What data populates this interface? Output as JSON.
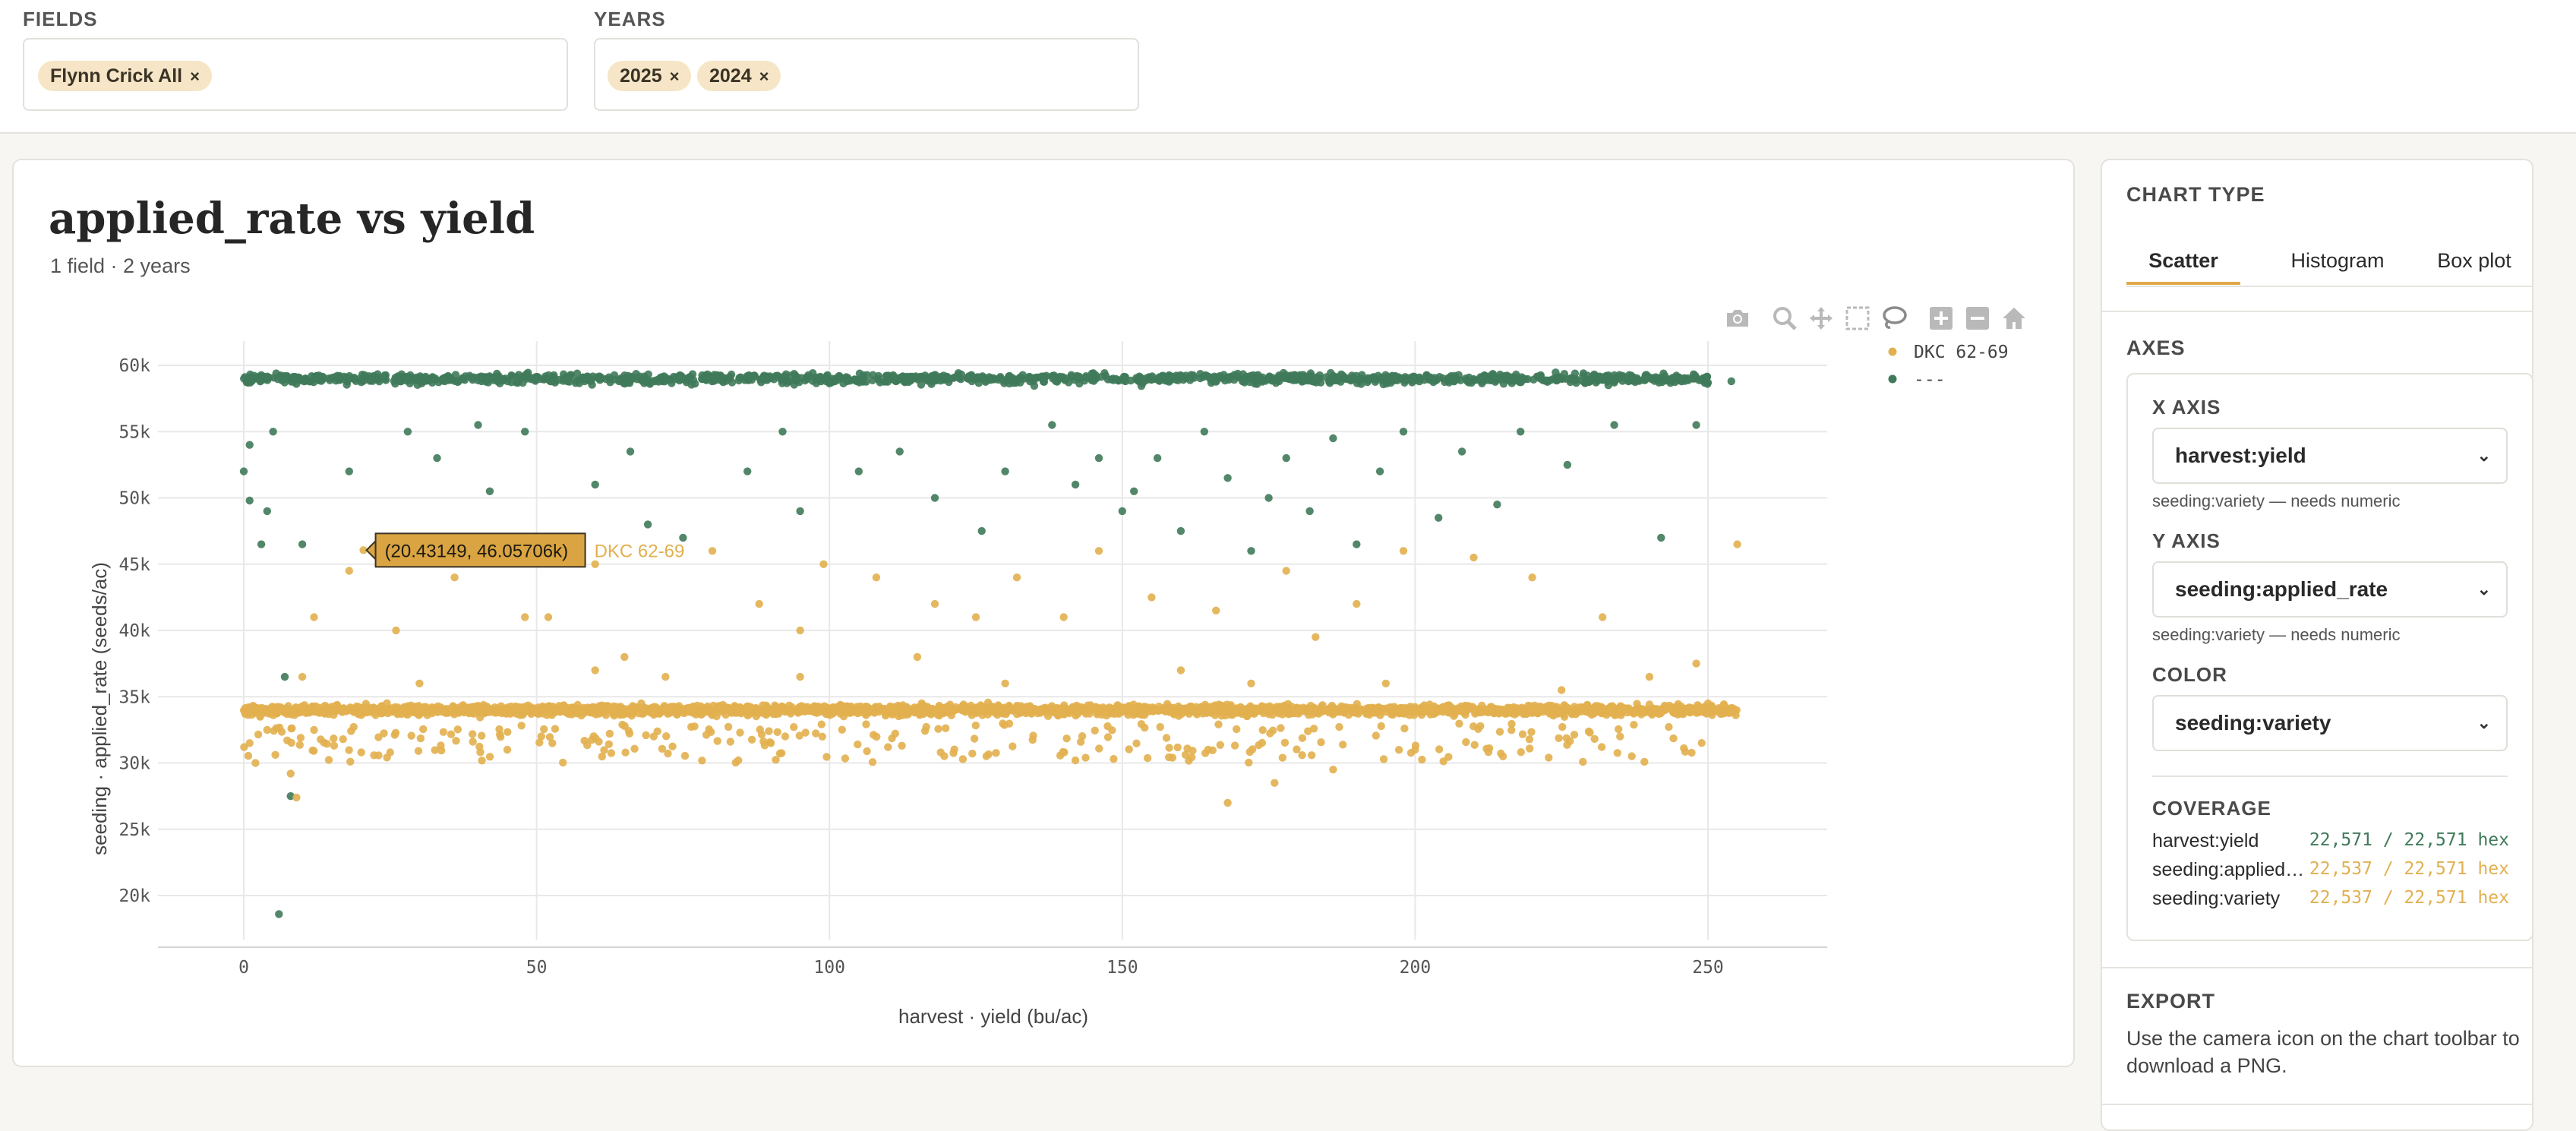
{
  "filters": {
    "fields": {
      "label": "FIELDS",
      "chips": [
        "Flynn Crick All"
      ],
      "remove_glyph": "×"
    },
    "years": {
      "label": "YEARS",
      "chips": [
        "2025",
        "2024"
      ],
      "remove_glyph": "×"
    }
  },
  "chart": {
    "title": "applied_rate vs yield",
    "subtitle": "1 field · 2 years",
    "toolbar_icons": [
      "camera-icon",
      "zoom-icon",
      "pan-icon",
      "box-select-icon",
      "lasso-icon",
      "zoom-in-icon",
      "zoom-out-icon",
      "home-icon"
    ]
  },
  "chart_data": {
    "type": "scatter",
    "title": "applied_rate vs yield",
    "xlabel": "harvest · yield (bu/ac)",
    "ylabel": "seeding · applied_rate (seeds/ac)",
    "xlim": [
      -15,
      270
    ],
    "ylim": [
      16000,
      62000
    ],
    "xticks": [
      0,
      50,
      100,
      150,
      200,
      250
    ],
    "yticks": [
      20000,
      25000,
      30000,
      35000,
      40000,
      45000,
      50000,
      55000,
      60000
    ],
    "ytick_labels": [
      "20k",
      "25k",
      "30k",
      "35k",
      "40k",
      "45k",
      "50k",
      "55k",
      "60k"
    ],
    "grid": true,
    "legend_position": "top-right",
    "series": [
      {
        "name": "DKC 62-69",
        "color": "#e2b04f",
        "description": "dense band near 34,000 seeds/ac across yields 0–255",
        "points": [
          [
            20.43149,
            46057.06
          ],
          [
            1,
            31500
          ],
          [
            2,
            30000
          ],
          [
            4,
            32500
          ],
          [
            8,
            29200
          ],
          [
            9,
            27400
          ],
          [
            12,
            41000
          ],
          [
            18,
            44500
          ],
          [
            26,
            40000
          ],
          [
            36,
            44000
          ],
          [
            48,
            41000
          ],
          [
            52,
            41000
          ],
          [
            60,
            45000
          ],
          [
            65,
            38000
          ],
          [
            72,
            36500
          ],
          [
            80,
            46000
          ],
          [
            88,
            42000
          ],
          [
            95,
            40000
          ],
          [
            99,
            45000
          ],
          [
            108,
            44000
          ],
          [
            115,
            38000
          ],
          [
            118,
            42000
          ],
          [
            125,
            41000
          ],
          [
            132,
            44000
          ],
          [
            140,
            41000
          ],
          [
            146,
            46000
          ],
          [
            155,
            42500
          ],
          [
            166,
            41500
          ],
          [
            172,
            36000
          ],
          [
            178,
            44500
          ],
          [
            183,
            39500
          ],
          [
            190,
            42000
          ],
          [
            198,
            46000
          ],
          [
            210,
            45500
          ],
          [
            220,
            44000
          ],
          [
            232,
            41000
          ],
          [
            240,
            36500
          ],
          [
            248,
            37500
          ],
          [
            255,
            46500
          ],
          [
            12,
            32500
          ],
          [
            25,
            30800
          ],
          [
            45,
            31000
          ],
          [
            70,
            32000
          ],
          [
            90,
            31500
          ],
          [
            110,
            31200
          ],
          [
            142,
            30200
          ],
          [
            168,
            27000
          ],
          [
            176,
            28500
          ],
          [
            186,
            29500
          ],
          [
            200,
            31000
          ],
          [
            215,
            30500
          ],
          [
            235,
            32000
          ],
          [
            10,
            36500
          ],
          [
            30,
            36000
          ],
          [
            60,
            37000
          ],
          [
            95,
            36500
          ],
          [
            130,
            36000
          ],
          [
            160,
            37000
          ],
          [
            195,
            36000
          ],
          [
            225,
            35500
          ],
          [
            250,
            34500
          ]
        ]
      },
      {
        "name": "---",
        "color": "#3f7a5a",
        "description": "dense band near 59,000 seeds/ac across yields 0–250",
        "points": [
          [
            0,
            52000
          ],
          [
            1,
            54000
          ],
          [
            1,
            49800
          ],
          [
            3,
            46500
          ],
          [
            5,
            55000
          ],
          [
            4,
            49000
          ],
          [
            6,
            18600
          ],
          [
            7,
            36500
          ],
          [
            8,
            27500
          ],
          [
            10,
            46500
          ],
          [
            18,
            52000
          ],
          [
            22,
            46200
          ],
          [
            28,
            55000
          ],
          [
            33,
            53000
          ],
          [
            40,
            55500
          ],
          [
            42,
            50500
          ],
          [
            48,
            55000
          ],
          [
            60,
            51000
          ],
          [
            66,
            53500
          ],
          [
            69,
            48000
          ],
          [
            75,
            47000
          ],
          [
            86,
            52000
          ],
          [
            92,
            55000
          ],
          [
            95,
            49000
          ],
          [
            105,
            52000
          ],
          [
            112,
            53500
          ],
          [
            118,
            50000
          ],
          [
            126,
            47500
          ],
          [
            130,
            52000
          ],
          [
            138,
            55500
          ],
          [
            142,
            51000
          ],
          [
            146,
            53000
          ],
          [
            150,
            49000
          ],
          [
            152,
            50500
          ],
          [
            156,
            53000
          ],
          [
            160,
            47500
          ],
          [
            164,
            55000
          ],
          [
            168,
            51500
          ],
          [
            172,
            46000
          ],
          [
            175,
            50000
          ],
          [
            178,
            53000
          ],
          [
            182,
            49000
          ],
          [
            186,
            54500
          ],
          [
            190,
            46500
          ],
          [
            194,
            52000
          ],
          [
            198,
            55000
          ],
          [
            204,
            48500
          ],
          [
            208,
            53500
          ],
          [
            214,
            49500
          ],
          [
            218,
            55000
          ],
          [
            226,
            52500
          ],
          [
            234,
            55500
          ],
          [
            242,
            47000
          ],
          [
            248,
            55500
          ],
          [
            250,
            58700
          ],
          [
            254,
            58800
          ],
          [
            233,
            58500
          ]
        ]
      }
    ],
    "tooltip": {
      "text": "(20.43149, 46.05706k)",
      "series": "DKC 62-69"
    }
  },
  "panel": {
    "chart_type": {
      "title": "CHART TYPE",
      "tabs": [
        "Scatter",
        "Histogram",
        "Box plot"
      ],
      "active": "Scatter"
    },
    "axes": {
      "title": "AXES",
      "x": {
        "label": "X AXIS",
        "value": "harvest:yield",
        "hint": "seeding:variety — needs numeric"
      },
      "y": {
        "label": "Y AXIS",
        "value": "seeding:applied_rate",
        "hint": "seeding:variety — needs numeric"
      },
      "color": {
        "label": "COLOR",
        "value": "seeding:variety"
      }
    },
    "coverage": {
      "title": "COVERAGE",
      "rows": [
        {
          "name": "harvest:yield",
          "value": "22,571 / 22,571 hex",
          "color": "#3f7a5a"
        },
        {
          "name": "seeding:applied…",
          "value": "22,537 / 22,571 hex",
          "color": "#e2b04f"
        },
        {
          "name": "seeding:variety",
          "value": "22,537 / 22,571 hex",
          "color": "#e2b04f"
        }
      ]
    },
    "export": {
      "title": "EXPORT",
      "text": "Use the camera icon on the chart toolbar to download a PNG."
    }
  }
}
